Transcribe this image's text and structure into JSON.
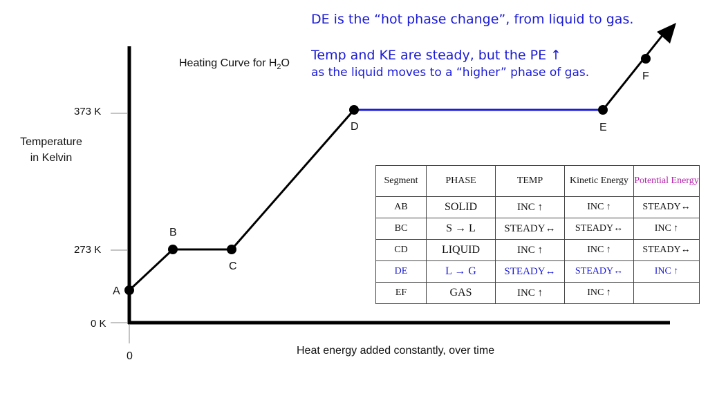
{
  "annotation": {
    "title": "DE is the “hot phase change”, from liquid to gas.",
    "line1": "Temp and KE are steady, but the PE ↑",
    "line2": "as the liquid moves to a “higher” phase of gas."
  },
  "chart": {
    "title_main": "Heating Curve for H",
    "title_sub": "2",
    "title_end": "O",
    "ylabel_line1": "Temperature",
    "ylabel_line2": "in Kelvin",
    "xlabel": "Heat energy added constantly, over time",
    "y_ticks": [
      "373 K",
      "273 K",
      "0 K"
    ],
    "x_origin": "0"
  },
  "points": [
    "A",
    "B",
    "C",
    "D",
    "E",
    "F"
  ],
  "colors": {
    "line": "#000000",
    "highlight": "#1a1ad6",
    "pe_header": "#b21fa8"
  },
  "table": {
    "headers": [
      "Segment",
      "PHASE",
      "TEMP",
      "Kinetic Energy",
      "Potential Energy"
    ],
    "rows": [
      [
        "AB",
        "SOLID",
        "INC ↑",
        "INC ↑",
        "STEADY↔"
      ],
      [
        "BC",
        "S → L",
        "STEADY↔",
        "STEADY↔",
        "INC ↑"
      ],
      [
        "CD",
        "LIQUID",
        "INC ↑",
        "INC ↑",
        "STEADY↔"
      ],
      [
        "DE",
        "L → G",
        "STEADY↔",
        "STEADY↔",
        "INC ↑"
      ],
      [
        "EF",
        "GAS",
        "INC ↑",
        "INC ↑",
        ""
      ]
    ]
  }
}
